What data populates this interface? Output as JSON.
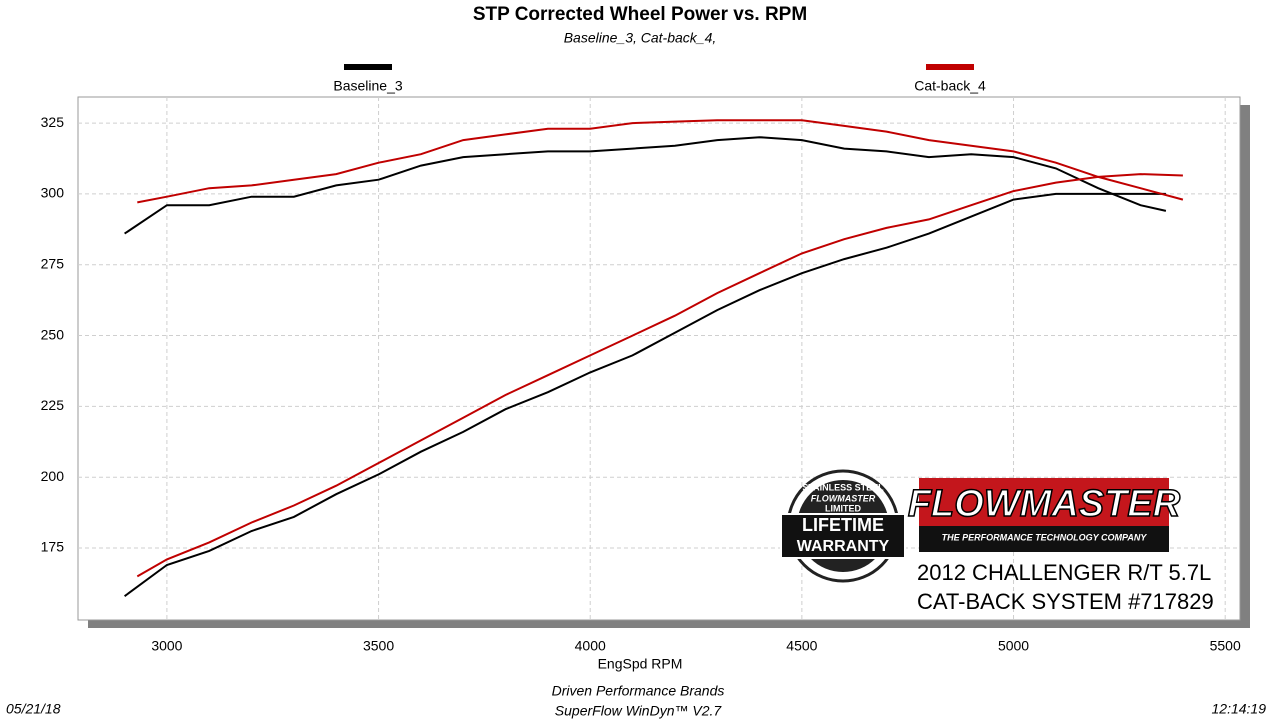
{
  "chart_data": {
    "type": "line",
    "title": "STP Corrected Wheel Power vs. RPM",
    "subtitle": "Baseline_3, Cat-back_4,",
    "x_label": "EngSpd  RPM",
    "xlim": [
      2790,
      5535
    ],
    "xticks": [
      3000,
      3500,
      4000,
      4500,
      5000,
      5500
    ],
    "ylim": [
      149.6,
      334.2
    ],
    "yticks": [
      175,
      200,
      225,
      250,
      275,
      300,
      325
    ],
    "grid": true,
    "series": [
      {
        "name": "Baseline_3",
        "color": "#000000",
        "x": [
          2900,
          3000,
          3100,
          3200,
          3300,
          3400,
          3500,
          3600,
          3700,
          3800,
          3900,
          4000,
          4100,
          4200,
          4300,
          4400,
          4500,
          4600,
          4700,
          4800,
          4900,
          5000,
          5100,
          5200,
          5300,
          5360
        ],
        "values": [
          158,
          169,
          174,
          181,
          186,
          194,
          201,
          209,
          216,
          224,
          230,
          237,
          243,
          251,
          259,
          266,
          272,
          277,
          281,
          286,
          292,
          298,
          300,
          300,
          300,
          300
        ],
        "values_upper": [
          286,
          296,
          296,
          299,
          299,
          303,
          305,
          310,
          313,
          314,
          315,
          315,
          316,
          317,
          319,
          320,
          319,
          316,
          315,
          313,
          314,
          313,
          309,
          302,
          296,
          294
        ]
      },
      {
        "name": "Cat-back_4",
        "color": "#c00000",
        "x": [
          2930,
          3000,
          3100,
          3200,
          3300,
          3400,
          3500,
          3600,
          3700,
          3800,
          3900,
          4000,
          4100,
          4200,
          4300,
          4400,
          4500,
          4600,
          4700,
          4800,
          4900,
          5000,
          5100,
          5200,
          5300,
          5400
        ],
        "values": [
          165,
          171,
          177,
          184,
          190,
          197,
          205,
          213,
          221,
          229,
          236,
          243,
          250,
          257,
          265,
          272,
          279,
          284,
          288,
          291,
          296,
          301,
          304,
          306,
          307,
          306.5
        ],
        "values_upper": [
          297,
          299,
          302,
          303,
          305,
          307,
          311,
          314,
          319,
          321,
          323,
          323,
          325,
          325.5,
          326,
          326,
          326,
          324,
          322,
          319,
          317,
          315,
          311,
          306,
          302,
          298
        ]
      }
    ],
    "footer": {
      "date": "05/21/18",
      "company": "Driven Performance Brands",
      "software": "SuperFlow WinDyn™  V2.7",
      "time": "12:14:19"
    },
    "logo": {
      "brand": "FLOWMASTER",
      "tagline": "THE PERFORMANCE TECHNOLOGY COMPANY",
      "line1": "2012 CHALLENGER R/T 5.7L",
      "line2": "CAT-BACK SYSTEM #717829",
      "badge": [
        "STAINLESS STEEL",
        "FLOWMASTER",
        "LIMITED",
        "LIFETIME",
        "WARRANTY"
      ]
    }
  }
}
